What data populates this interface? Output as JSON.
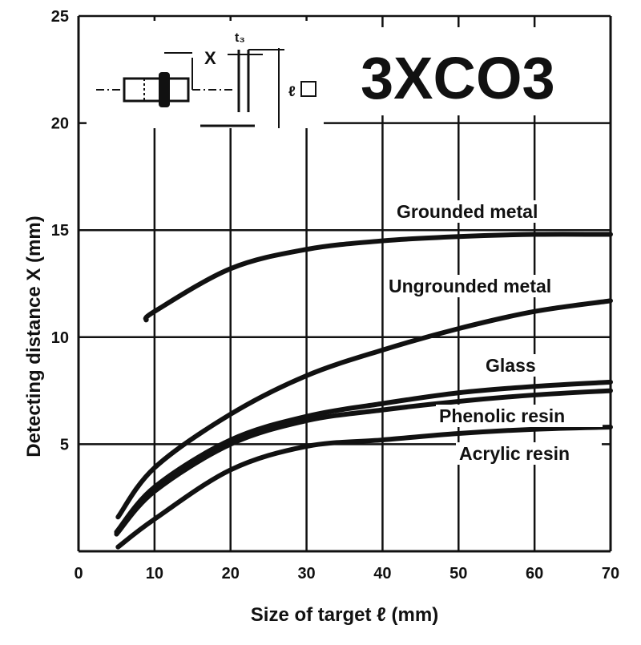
{
  "chart_data": {
    "type": "line",
    "title": "3XCO3",
    "xlabel": "Size of target ℓ  (mm)",
    "ylabel": "Detecting distance X (mm)",
    "xlim": [
      0,
      70
    ],
    "ylim": [
      0,
      25
    ],
    "xticks": [
      0,
      10,
      20,
      30,
      40,
      50,
      60,
      70
    ],
    "yticks": [
      5,
      10,
      15,
      20,
      25
    ],
    "grid": true,
    "diagram_labels": {
      "distance": "X",
      "thickness": "t₃",
      "size": "ℓ"
    },
    "series": [
      {
        "name": "Grounded metal",
        "x": [
          8.9,
          10,
          20,
          30,
          40,
          50,
          60,
          70
        ],
        "y": [
          10.8,
          11.2,
          13.2,
          14.1,
          14.5,
          14.7,
          14.8,
          14.8
        ]
      },
      {
        "name": "Ungrounded metal",
        "x": [
          5.2,
          10,
          20,
          30,
          40,
          50,
          60,
          70
        ],
        "y": [
          1.6,
          3.9,
          6.4,
          8.2,
          9.4,
          10.4,
          11.2,
          11.7
        ]
      },
      {
        "name": "Glass",
        "x": [
          5,
          10,
          20,
          30,
          40,
          50,
          60,
          70
        ],
        "y": [
          0.9,
          3.0,
          5.2,
          6.3,
          6.9,
          7.4,
          7.7,
          7.9
        ]
      },
      {
        "name": "Phenolic resin",
        "x": [
          5,
          10,
          20,
          30,
          40,
          50,
          60,
          70
        ],
        "y": [
          0.8,
          2.8,
          5.0,
          6.1,
          6.6,
          7.0,
          7.3,
          7.5
        ]
      },
      {
        "name": "Acrylic resin",
        "x": [
          5.2,
          10,
          20,
          30,
          40,
          50,
          60,
          70
        ],
        "y": [
          0.2,
          1.5,
          3.8,
          4.9,
          5.2,
          5.5,
          5.7,
          5.8
        ]
      }
    ]
  }
}
